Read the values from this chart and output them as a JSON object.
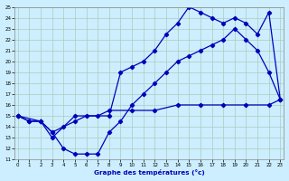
{
  "xlabel": "Graphe des températures (°c)",
  "bg_color": "#cceeff",
  "line_color": "#0000bb",
  "grid_color": "#aaddcc",
  "xlim": [
    -0.3,
    23.3
  ],
  "ylim": [
    11,
    25
  ],
  "yticks": [
    11,
    12,
    13,
    14,
    15,
    16,
    17,
    18,
    19,
    20,
    21,
    22,
    23,
    24,
    25
  ],
  "xticks": [
    0,
    1,
    2,
    3,
    4,
    5,
    6,
    7,
    8,
    9,
    10,
    11,
    12,
    13,
    14,
    15,
    16,
    17,
    18,
    19,
    20,
    21,
    22,
    23
  ],
  "curve1_x": [
    0,
    1,
    2,
    3,
    4,
    5,
    6,
    7,
    8,
    9,
    10,
    11,
    12,
    13,
    14,
    15,
    16,
    17,
    18,
    19,
    20,
    21,
    22,
    23
  ],
  "curve1_y": [
    15.0,
    14.5,
    14.5,
    13.5,
    12.0,
    11.5,
    11.5,
    11.5,
    13.5,
    14.5,
    16.0,
    17.0,
    18.0,
    19.0,
    20.0,
    20.5,
    21.0,
    21.5,
    22.0,
    23.0,
    22.0,
    21.0,
    19.0,
    16.5
  ],
  "curve2_x": [
    0,
    2,
    3,
    5,
    8,
    9,
    10,
    11,
    12,
    13,
    14,
    15,
    16,
    17,
    18,
    19,
    20,
    21,
    22,
    23
  ],
  "curve2_y": [
    15.0,
    14.5,
    13.0,
    15.0,
    15.0,
    19.0,
    19.5,
    20.0,
    21.0,
    22.5,
    23.5,
    25.0,
    24.5,
    24.0,
    23.5,
    24.0,
    23.5,
    22.5,
    24.5,
    16.5
  ],
  "curve3_x": [
    0,
    1,
    2,
    3,
    4,
    5,
    6,
    7,
    8,
    10,
    12,
    14,
    16,
    18,
    20,
    22,
    23
  ],
  "curve3_y": [
    15.0,
    14.5,
    14.5,
    13.5,
    14.0,
    14.5,
    15.0,
    15.0,
    15.5,
    15.5,
    15.5,
    16.0,
    16.0,
    16.0,
    16.0,
    16.0,
    16.5
  ]
}
